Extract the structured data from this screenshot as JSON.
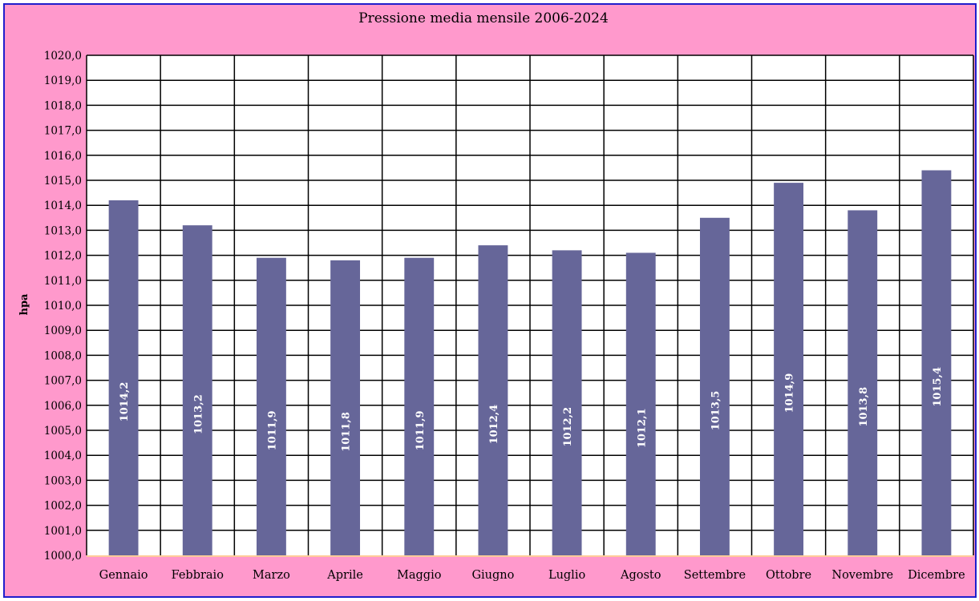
{
  "colors": {
    "background": "#ff99cc",
    "plot_area": "#ffffff",
    "bar": "#666699",
    "gridline": "#000000",
    "border": "#1f1fcc",
    "baseline": "#ffcc99"
  },
  "chart_data": {
    "type": "bar",
    "title": "Pressione media mensile 2006-2024",
    "xlabel": "",
    "ylabel": "hpa",
    "categories": [
      "Gennaio",
      "Febbraio",
      "Marzo",
      "Aprile",
      "Maggio",
      "Giugno",
      "Luglio",
      "Agosto",
      "Settembre",
      "Ottobre",
      "Novembre",
      "Dicembre"
    ],
    "values": [
      1014.2,
      1013.2,
      1011.9,
      1011.8,
      1011.9,
      1012.4,
      1012.2,
      1012.1,
      1013.5,
      1014.9,
      1013.8,
      1015.4
    ],
    "data_labels": [
      "1014,2",
      "1013,2",
      "1011,9",
      "1011,8",
      "1011,9",
      "1012,4",
      "1012,2",
      "1012,1",
      "1013,5",
      "1014,9",
      "1013,8",
      "1015,4"
    ],
    "ylim": [
      1000,
      1020
    ],
    "ytick_labels": [
      "1000,0",
      "1001,0",
      "1002,0",
      "1003,0",
      "1004,0",
      "1005,0",
      "1006,0",
      "1007,0",
      "1008,0",
      "1009,0",
      "1010,0",
      "1011,0",
      "1012,0",
      "1013,0",
      "1014,0",
      "1015,0",
      "1016,0",
      "1017,0",
      "1018,0",
      "1019,0",
      "1020,0"
    ],
    "grid": true,
    "legend": "none"
  }
}
